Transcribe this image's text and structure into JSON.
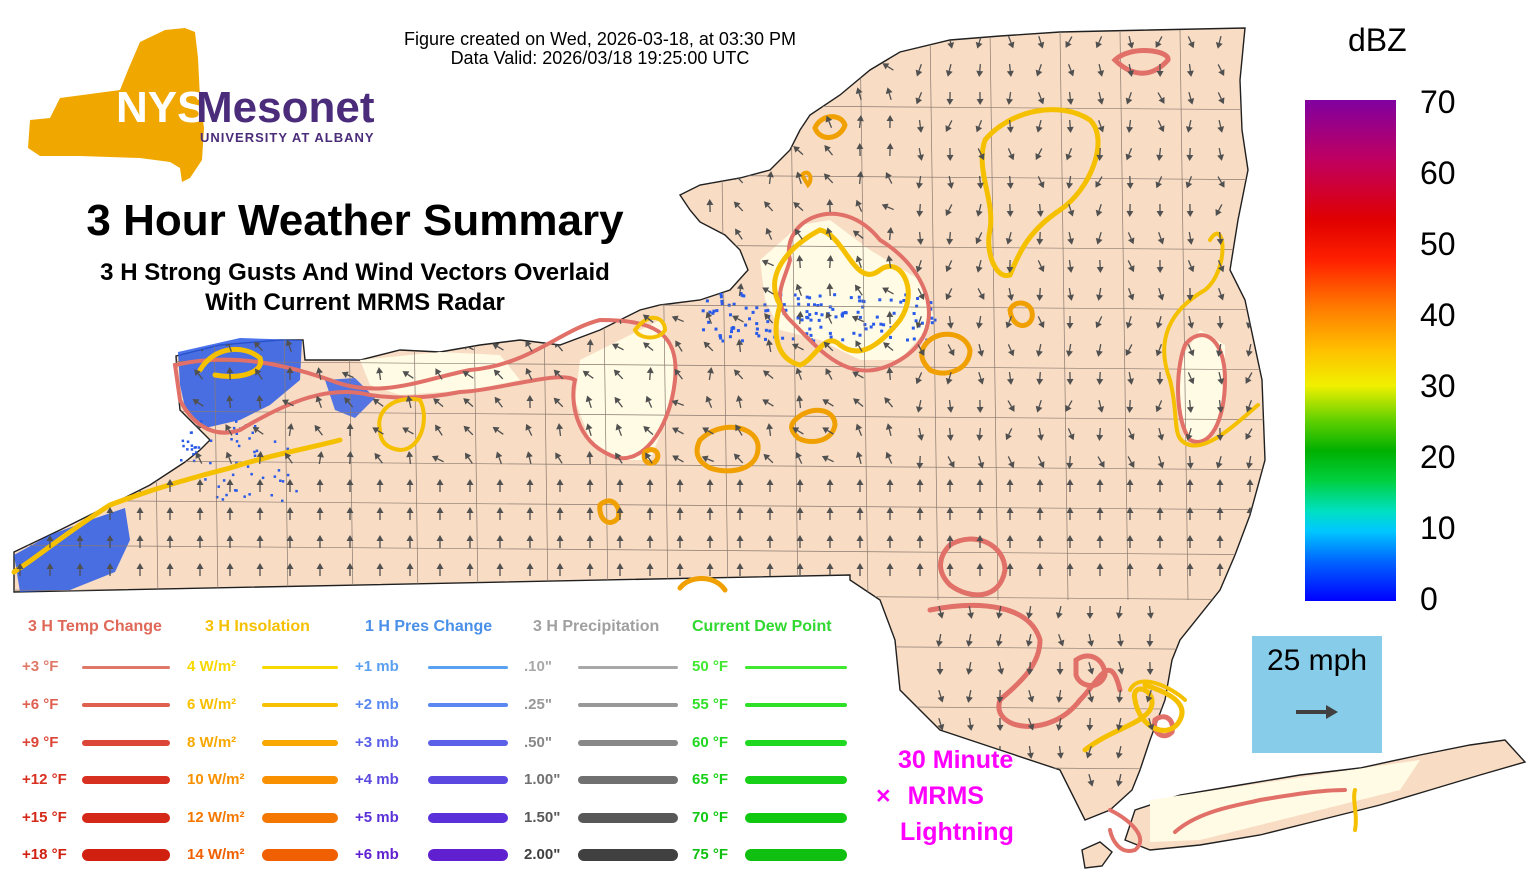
{
  "header": {
    "created": "Figure created on Wed, 2026-03-18, at 03:30 PM",
    "valid": "Data Valid: 2026/03/18 19:25:00 UTC"
  },
  "logo": {
    "brand_nys": "NYS",
    "brand_mesonet": "Mesonet",
    "subtitle": "UNIVERSITY AT ALBANY",
    "colors": {
      "state": "#f0a800",
      "mesonet": "#4b2c7a"
    }
  },
  "titles": {
    "main": "3 Hour Weather Summary",
    "sub_line1": "3 H Strong Gusts And Wind Vectors Overlaid",
    "sub_line2": "With Current MRMS Radar"
  },
  "legend": {
    "temp": {
      "title": "3 H Temp Change",
      "color": "#e06858",
      "rows": [
        {
          "label": "+3 °F",
          "color": "#e07868"
        },
        {
          "label": "+6 °F",
          "color": "#e06050"
        },
        {
          "label": "+9 °F",
          "color": "#dc4638"
        },
        {
          "label": "+12 °F",
          "color": "#d83020"
        },
        {
          "label": "+15 °F",
          "color": "#d42818"
        },
        {
          "label": "+18 °F",
          "color": "#d02010"
        }
      ]
    },
    "insolation": {
      "title": "3 H Insolation",
      "color": "#f5c000",
      "rows": [
        {
          "label": "4 W/m²",
          "color": "#f8d800"
        },
        {
          "label": "6 W/m²",
          "color": "#f8c000"
        },
        {
          "label": "8 W/m²",
          "color": "#f8a800"
        },
        {
          "label": "10 W/m²",
          "color": "#f89000"
        },
        {
          "label": "12 W/m²",
          "color": "#f47800"
        },
        {
          "label": "14 W/m²",
          "color": "#f06000"
        }
      ]
    },
    "pressure": {
      "title": "1 H Pres Change",
      "color": "#4a90e8",
      "rows": [
        {
          "label": "+1 mb",
          "color": "#5aa0f0"
        },
        {
          "label": "+2 mb",
          "color": "#5a88f0"
        },
        {
          "label": "+3 mb",
          "color": "#5a60e8"
        },
        {
          "label": "+4 mb",
          "color": "#5a48e0"
        },
        {
          "label": "+5 mb",
          "color": "#5a30d8"
        },
        {
          "label": "+6 mb",
          "color": "#6020d0"
        }
      ]
    },
    "precip": {
      "title": "3 H Precipitation",
      "color": "#a0a0a0",
      "rows": [
        {
          "label": ".10\"",
          "color": "#a8a8a8"
        },
        {
          "label": ".25\"",
          "color": "#989898"
        },
        {
          "label": ".50\"",
          "color": "#888888"
        },
        {
          "label": "1.00\"",
          "color": "#707070"
        },
        {
          "label": "1.50\"",
          "color": "#585858"
        },
        {
          "label": "2.00\"",
          "color": "#404040"
        }
      ]
    },
    "dewpoint": {
      "title": "Current Dew Point",
      "color": "#30d830",
      "rows": [
        {
          "label": "50 °F",
          "color": "#40e830"
        },
        {
          "label": "55 °F",
          "color": "#30e028"
        },
        {
          "label": "60 °F",
          "color": "#20d820"
        },
        {
          "label": "65 °F",
          "color": "#18d018"
        },
        {
          "label": "70 °F",
          "color": "#10c810"
        },
        {
          "label": "75 °F",
          "color": "#10c010"
        }
      ]
    }
  },
  "colorbar": {
    "title": "dBZ",
    "ticks": [
      "70",
      "60",
      "50",
      "40",
      "30",
      "20",
      "10",
      "0"
    ]
  },
  "wind_reference": {
    "label": "25 mph"
  },
  "lightning": {
    "marker": "×",
    "line1": "30 Minute",
    "line2": "MRMS",
    "line3": "Lightning",
    "color": "#ff00ff"
  },
  "map_colors": {
    "land": "#f8dcc4",
    "warm_area": "#fffbe4",
    "temp_contour": "#e07068",
    "insolation_contour": "#f5c000",
    "radar_blue": "#2a5ae8",
    "vector": "#505050"
  }
}
